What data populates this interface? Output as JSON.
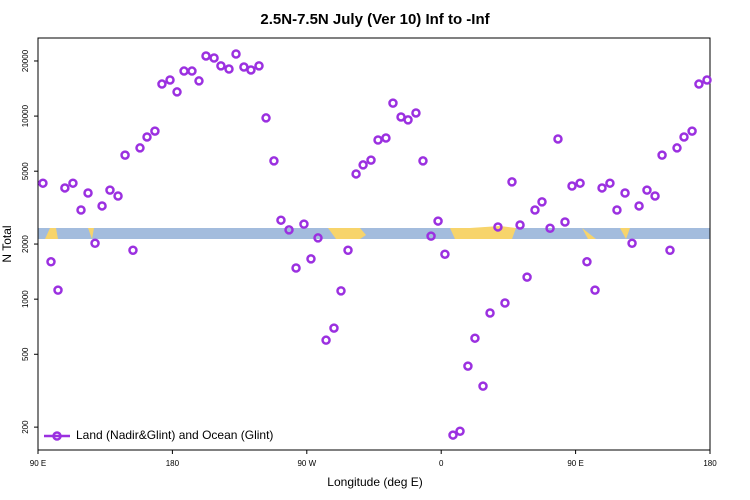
{
  "chart_data": {
    "type": "scatter",
    "title": "2.5N-7.5N July (Ver 10)   Inf to -Inf",
    "x_label": "Longitude (deg E)",
    "y_label": "N Total",
    "xlim": [
      90,
      540
    ],
    "xticks": [
      {
        "value": 90,
        "label": "90 E"
      },
      180,
      {
        "value": 270,
        "label": "90 W"
      },
      {
        "value": 360,
        "label": "0"
      },
      {
        "value": 450,
        "label": "90 E"
      },
      {
        "value": 540,
        "label": "180"
      }
    ],
    "ylim": [
      150,
      26700
    ],
    "yticks": [
      200,
      500,
      1000,
      2000,
      5000,
      10000,
      20000
    ],
    "log_y": true,
    "legend": "lower left",
    "series": [
      {
        "name": "Land (Nadir&Glint) and Ocean (Glint)",
        "color": "#9b30e0",
        "x": [
          93.3,
          98.7,
          103.4,
          108,
          113.4,
          118.8,
          123.5,
          128.2,
          132.9,
          138.2,
          143.6,
          148.3,
          153.6,
          158.3,
          163,
          168.3,
          173,
          178.4,
          183.1,
          187.8,
          193.1,
          197.8,
          202.5,
          207.9,
          212.5,
          217.9,
          222.6,
          227.9,
          232.6,
          238,
          242.7,
          248,
          252.7,
          258.1,
          262.8,
          268.1,
          272.8,
          277.5,
          282.9,
          288.2,
          292.9,
          297.6,
          303,
          307.7,
          313,
          317.7,
          323,
          327.7,
          333.1,
          337.8,
          343.1,
          347.8,
          353.2,
          357.9,
          362.5,
          367.9,
          372.6,
          377.9,
          382.6,
          388,
          392.7,
          398,
          402.7,
          407.4,
          412.8,
          417.5,
          422.8,
          427.5,
          432.9,
          438.2,
          442.9,
          447.6,
          453,
          457.6,
          463,
          467.7,
          473,
          477.7,
          483.1,
          487.8,
          492.5,
          497.8,
          503.2,
          507.9,
          513.2,
          517.9,
          522.6,
          528,
          532.6,
          538
        ],
        "values": [
          4300,
          1600,
          1120,
          4050,
          4300,
          3070,
          3800,
          2020,
          3230,
          3940,
          3660,
          6120,
          1850,
          6700,
          7690,
          8280,
          14960,
          15740,
          13550,
          17620,
          17620,
          15560,
          21300,
          20760,
          18800,
          18070,
          21830,
          18530,
          17860,
          18800,
          9770,
          5690,
          2700,
          2390,
          1480,
          2570,
          1660,
          2160,
          597,
          695,
          1110,
          1850,
          4830,
          5410,
          5750,
          7400,
          7590,
          11770,
          9890,
          9530,
          10400,
          5690,
          2210,
          2670,
          1760,
          181,
          190,
          431,
          612,
          335,
          840,
          2480,
          953,
          4370,
          2540,
          1320,
          3070,
          3400,
          2440,
          7500,
          2640,
          4150,
          4300,
          1600,
          1120,
          4050,
          4300,
          3070,
          3800,
          2020,
          3230,
          3940,
          3660,
          6120,
          1850,
          6700,
          7690,
          8280,
          14960,
          15740
        ]
      }
    ]
  }
}
